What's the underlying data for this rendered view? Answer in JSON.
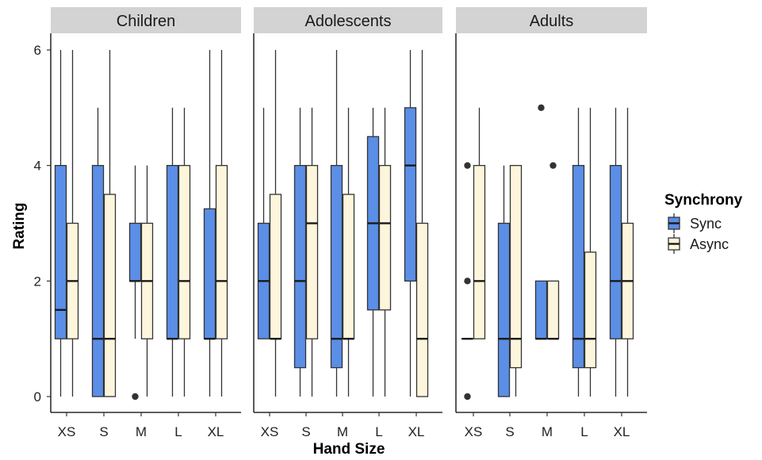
{
  "chart_data": {
    "type": "boxplot",
    "facets": [
      "Children",
      "Adolescents",
      "Adults"
    ],
    "categories": [
      "XS",
      "S",
      "M",
      "L",
      "XL"
    ],
    "xlabel": "Hand Size",
    "ylabel": "Rating",
    "ylim": [
      0,
      6
    ],
    "yticks": [
      0,
      2,
      4,
      6
    ],
    "legend": {
      "title": "Synchrony",
      "position": "right",
      "entries": [
        {
          "name": "Sync",
          "color": "#5b8ee6"
        },
        {
          "name": "Async",
          "color": "#fdf6dc"
        }
      ]
    },
    "series": [
      {
        "name": "Sync",
        "color": "#5b8ee6",
        "boxes": {
          "Children": [
            {
              "min": 0,
              "q1": 1,
              "median": 1.5,
              "q3": 4,
              "max": 6,
              "outliers": []
            },
            {
              "min": 0,
              "q1": 0,
              "median": 1,
              "q3": 4,
              "max": 5,
              "outliers": []
            },
            {
              "min": 1,
              "q1": 2,
              "median": 2,
              "q3": 3,
              "max": 4,
              "outliers": [
                0
              ]
            },
            {
              "min": 0,
              "q1": 1,
              "median": 1,
              "q3": 4,
              "max": 5,
              "outliers": []
            },
            {
              "min": 0,
              "q1": 1,
              "median": 1,
              "q3": 3.25,
              "max": 6,
              "outliers": []
            }
          ],
          "Adolescents": [
            {
              "min": 1,
              "q1": 1,
              "median": 2,
              "q3": 3,
              "max": 5,
              "outliers": []
            },
            {
              "min": 0,
              "q1": 0.5,
              "median": 2,
              "q3": 4,
              "max": 5,
              "outliers": []
            },
            {
              "min": 0,
              "q1": 0.5,
              "median": 1,
              "q3": 4,
              "max": 6,
              "outliers": []
            },
            {
              "min": 0,
              "q1": 1.5,
              "median": 3,
              "q3": 4.5,
              "max": 5,
              "outliers": []
            },
            {
              "min": 0,
              "q1": 2,
              "median": 4,
              "q3": 5,
              "max": 6,
              "outliers": []
            }
          ],
          "Adults": [
            {
              "min": 1,
              "q1": 1,
              "median": 1,
              "q3": 1,
              "max": 1,
              "outliers": [
                0,
                2,
                4
              ]
            },
            {
              "min": 0,
              "q1": 0,
              "median": 1,
              "q3": 3,
              "max": 4,
              "outliers": []
            },
            {
              "min": 1,
              "q1": 1,
              "median": 1,
              "q3": 2,
              "max": 2,
              "outliers": [
                5
              ]
            },
            {
              "min": 0,
              "q1": 0.5,
              "median": 1,
              "q3": 4,
              "max": 5,
              "outliers": []
            },
            {
              "min": 0,
              "q1": 1,
              "median": 2,
              "q3": 4,
              "max": 5,
              "outliers": []
            }
          ]
        }
      },
      {
        "name": "Async",
        "color": "#fdf6dc",
        "boxes": {
          "Children": [
            {
              "min": 0,
              "q1": 1,
              "median": 2,
              "q3": 3,
              "max": 6,
              "outliers": []
            },
            {
              "min": 0,
              "q1": 0,
              "median": 1,
              "q3": 3.5,
              "max": 6,
              "outliers": []
            },
            {
              "min": 0,
              "q1": 1,
              "median": 2,
              "q3": 3,
              "max": 4,
              "outliers": []
            },
            {
              "min": 0,
              "q1": 1,
              "median": 2,
              "q3": 4,
              "max": 5,
              "outliers": []
            },
            {
              "min": 0,
              "q1": 1,
              "median": 2,
              "q3": 4,
              "max": 6,
              "outliers": []
            }
          ],
          "Adolescents": [
            {
              "min": 0,
              "q1": 1,
              "median": 1,
              "q3": 3.5,
              "max": 6,
              "outliers": []
            },
            {
              "min": 0,
              "q1": 1,
              "median": 3,
              "q3": 4,
              "max": 5,
              "outliers": []
            },
            {
              "min": 0,
              "q1": 1,
              "median": 1,
              "q3": 3.5,
              "max": 5,
              "outliers": []
            },
            {
              "min": 0,
              "q1": 1.5,
              "median": 3,
              "q3": 4,
              "max": 5,
              "outliers": []
            },
            {
              "min": 0,
              "q1": 0,
              "median": 1,
              "q3": 3,
              "max": 6,
              "outliers": []
            }
          ],
          "Adults": [
            {
              "min": 1,
              "q1": 1,
              "median": 2,
              "q3": 4,
              "max": 5,
              "outliers": []
            },
            {
              "min": 0,
              "q1": 0.5,
              "median": 1,
              "q3": 4,
              "max": 4,
              "outliers": []
            },
            {
              "min": 1,
              "q1": 1,
              "median": 1,
              "q3": 2,
              "max": 2,
              "outliers": [
                4
              ]
            },
            {
              "min": 0,
              "q1": 0.5,
              "median": 1,
              "q3": 2.5,
              "max": 5,
              "outliers": []
            },
            {
              "min": 0,
              "q1": 1,
              "median": 2,
              "q3": 3,
              "max": 5,
              "outliers": []
            }
          ]
        }
      }
    ]
  }
}
